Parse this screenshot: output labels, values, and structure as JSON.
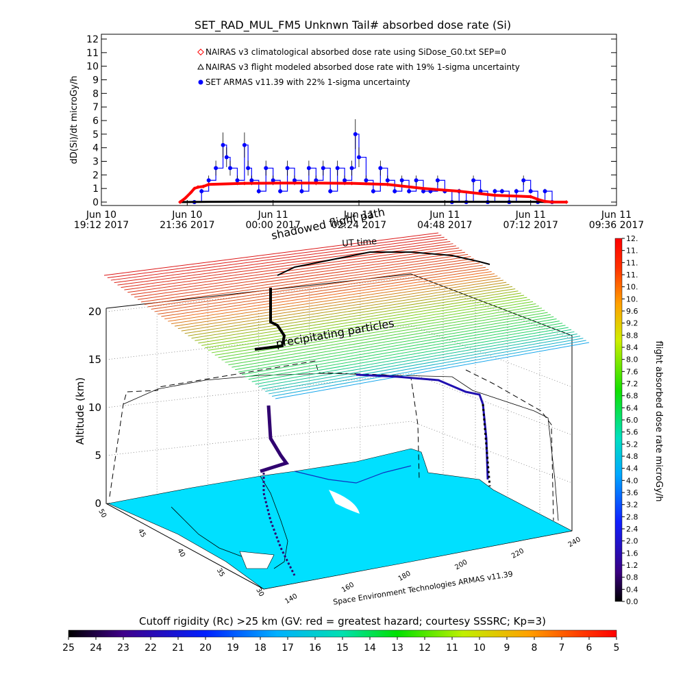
{
  "chart_data": [
    {
      "type": "line",
      "title": "SET_RAD_MUL_FM5 Unknwn Tail#  absorbed dose rate (Si)",
      "ylabel": "dD(Si)/dt microGy/h",
      "ylim": [
        0,
        12
      ],
      "yticks": [
        "0",
        "1",
        "2",
        "3",
        "4",
        "5",
        "6",
        "7",
        "8",
        "9",
        "10",
        "11",
        "12"
      ],
      "xlim": [
        0,
        14.4
      ],
      "xticks": [
        {
          "x": 0.0,
          "line1": "Jun 10",
          "line2": "19:12 2017"
        },
        {
          "x": 2.4,
          "line1": "Jun 10",
          "line2": "21:36 2017"
        },
        {
          "x": 4.8,
          "line1": "Jun 11",
          "line2": "00:00 2017"
        },
        {
          "x": 7.2,
          "line1": "Jun 11",
          "line2": "02:24 2017"
        },
        {
          "x": 9.6,
          "line1": "Jun 11",
          "line2": "04:48 2017"
        },
        {
          "x": 12.0,
          "line1": "Jun 11",
          "line2": "07:12 2017"
        },
        {
          "x": 14.4,
          "line1": "Jun 11",
          "line2": "09:36 2017"
        }
      ],
      "legend_placement": "top-left",
      "series": [
        {
          "name": "NAIRAS v3 climatological absorbed dose rate using SiDose_G0.txt SEP=0",
          "color": "#ff0000",
          "marker": "diamond",
          "x": [
            2.2,
            2.35,
            2.5,
            2.6,
            2.7,
            2.85,
            3.0,
            4.0,
            5.0,
            6.0,
            7.0,
            8.0,
            9.0,
            10.0,
            11.0,
            12.0,
            12.2,
            12.4,
            12.6,
            13.0
          ],
          "y": [
            0.0,
            0.3,
            0.7,
            1.0,
            1.1,
            1.15,
            1.3,
            1.38,
            1.4,
            1.4,
            1.38,
            1.3,
            1.0,
            0.8,
            0.5,
            0.4,
            0.2,
            0.05,
            0.0,
            0.0
          ]
        },
        {
          "name": "NAIRAS v3 flight modeled absorbed dose rate with 19% 1-sigma uncertainty",
          "color": "#000000",
          "marker": "triangle",
          "x": [
            2.2,
            3.0,
            4.0,
            5.0,
            6.0,
            7.0,
            8.0,
            9.0,
            10.0,
            11.0,
            12.0,
            13.0
          ],
          "y": [
            0.0,
            0.02,
            0.03,
            0.03,
            0.03,
            0.03,
            0.03,
            0.02,
            0.02,
            0.02,
            0.02,
            0.0
          ]
        },
        {
          "name": "SET ARMAS v11.39 with 22% 1-sigma uncertainty",
          "color": "#0000ff",
          "marker": "circle",
          "x": [
            2.6,
            2.8,
            3.0,
            3.2,
            3.4,
            3.5,
            3.6,
            3.8,
            4.0,
            4.1,
            4.2,
            4.4,
            4.6,
            4.8,
            5.0,
            5.2,
            5.4,
            5.6,
            5.8,
            6.0,
            6.2,
            6.4,
            6.6,
            6.8,
            7.0,
            7.1,
            7.2,
            7.4,
            7.6,
            7.8,
            8.0,
            8.2,
            8.4,
            8.6,
            8.8,
            9.0,
            9.2,
            9.4,
            9.6,
            9.8,
            10.0,
            10.2,
            10.4,
            10.6,
            10.8,
            11.0,
            11.2,
            11.4,
            11.6,
            11.8,
            12.0,
            12.2,
            12.4,
            12.6
          ],
          "y": [
            0.0,
            0.8,
            1.6,
            2.5,
            4.2,
            3.3,
            2.5,
            1.6,
            4.2,
            2.5,
            1.6,
            0.8,
            2.5,
            1.6,
            0.8,
            2.5,
            1.6,
            0.8,
            2.5,
            1.6,
            2.5,
            0.8,
            2.5,
            1.6,
            2.5,
            5.0,
            3.3,
            1.6,
            0.8,
            2.5,
            1.6,
            0.8,
            1.6,
            0.8,
            1.6,
            0.8,
            0.8,
            1.6,
            0.8,
            0.0,
            0.8,
            0.0,
            1.6,
            0.8,
            0.0,
            0.8,
            0.8,
            0.0,
            0.8,
            1.6,
            0.8,
            0.0,
            0.8,
            0.0
          ]
        }
      ]
    },
    {
      "type": "heatmap",
      "title": "shadowed flight path",
      "subtitle": "UT time",
      "layer_label": "precipitating particles",
      "zlabel": "Altitude (km)",
      "zticks": [
        "0",
        "5",
        "10",
        "15",
        "20"
      ],
      "zlim": [
        0,
        20
      ],
      "lat_ticks": [
        "30",
        "35",
        "40",
        "45",
        "50"
      ],
      "lon_ticks": [
        "140",
        "160",
        "180",
        "200",
        "220",
        "240"
      ],
      "footer": "Space Environment Technologies ARMAS v11.39",
      "colorbar": {
        "label": "flight absorbed dose rate microGy/h",
        "ticks": [
          "0.0",
          "0.4",
          "0.8",
          "1.2",
          "1.6",
          "2.0",
          "2.4",
          "2.8",
          "3.2",
          "3.6",
          "4.0",
          "4.4",
          "4.8",
          "5.2",
          "5.6",
          "6.0",
          "6.4",
          "6.8",
          "7.2",
          "7.6",
          "8.0",
          "8.4",
          "8.8",
          "9.2",
          "9.6",
          "10.",
          "10.",
          "11.",
          "11.",
          "11.",
          "12."
        ]
      }
    },
    {
      "type": "heatmap",
      "title": "Cutoff rigidity (Rc) >25 km (GV: red = greatest hazard; courtesy SSSRC; Kp=3)",
      "colorbar_ticks": [
        "25",
        "24",
        "23",
        "22",
        "21",
        "20",
        "19",
        "18",
        "17",
        "16",
        "15",
        "14",
        "13",
        "12",
        "11",
        "10",
        "9",
        "8",
        "7",
        "6",
        "5"
      ]
    }
  ],
  "colors": {
    "naairas_clim": "#ff0000",
    "naairas_flight": "#000000",
    "armas": "#0000ff",
    "land": "#00e0ff"
  }
}
